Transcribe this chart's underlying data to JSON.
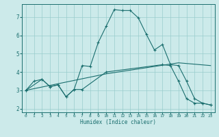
{
  "xlabel": "Humidex (Indice chaleur)",
  "background_color": "#cceaea",
  "grid_color": "#99cccc",
  "line_color": "#1a6e6e",
  "yticks": [
    2,
    3,
    4,
    5,
    6,
    7
  ],
  "xticks": [
    0,
    1,
    2,
    3,
    4,
    5,
    6,
    7,
    8,
    9,
    10,
    11,
    12,
    13,
    14,
    15,
    16,
    17,
    18,
    19,
    20,
    21,
    22,
    23
  ],
  "xlim": [
    -0.5,
    23.5
  ],
  "ylim": [
    1.8,
    7.7
  ],
  "curve1_x": [
    0,
    1,
    2,
    3,
    4,
    5,
    6,
    7,
    8,
    9,
    10,
    11,
    12,
    13,
    14,
    15,
    16,
    17,
    18,
    19,
    20,
    21,
    22,
    23
  ],
  "curve1_y": [
    3.0,
    3.5,
    3.6,
    3.2,
    3.3,
    2.65,
    3.05,
    4.35,
    4.3,
    5.6,
    6.5,
    7.4,
    7.35,
    7.35,
    6.95,
    6.05,
    5.2,
    5.5,
    4.4,
    4.35,
    3.5,
    2.55,
    2.3,
    2.2
  ],
  "curve2_x": [
    0,
    2,
    3,
    4,
    5,
    6,
    7,
    10,
    17,
    18,
    19,
    20,
    21,
    22,
    23
  ],
  "curve2_y": [
    3.0,
    3.6,
    3.2,
    3.3,
    2.65,
    3.05,
    3.05,
    4.0,
    4.4,
    4.35,
    3.5,
    2.55,
    2.3,
    2.3,
    2.2
  ],
  "curve3_x": [
    0,
    10,
    19,
    23
  ],
  "curve3_y": [
    3.0,
    3.9,
    4.5,
    4.35
  ]
}
